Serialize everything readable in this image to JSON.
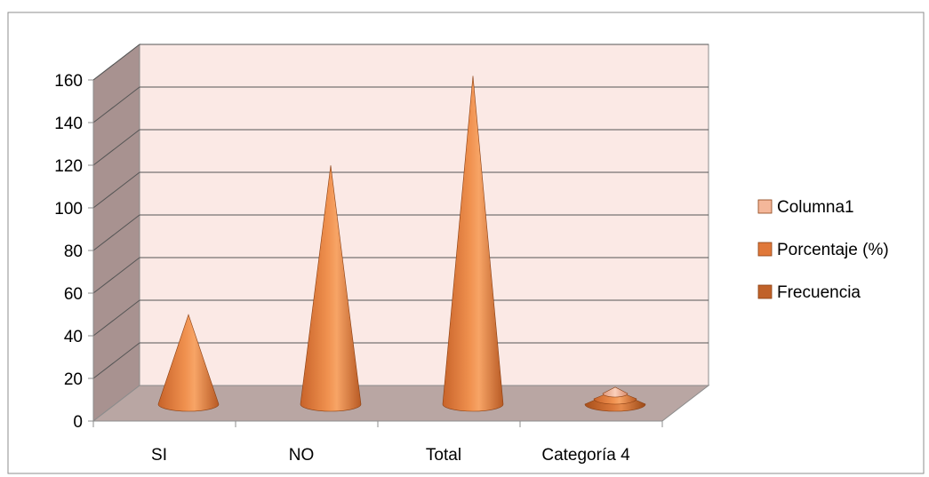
{
  "chart_data": {
    "type": "bar",
    "style": "3d-cone",
    "categories": [
      "SI",
      "NO",
      "Total",
      "Categoría 4"
    ],
    "series": [
      {
        "name": "Frecuencia",
        "values": [
          null,
          null,
          null,
          6
        ],
        "color": "#c0622a"
      },
      {
        "name": "Porcentaje (%)",
        "values": [
          42,
          112,
          154,
          4
        ],
        "color": "#e0783a"
      },
      {
        "name": "Columna1",
        "values": [
          null,
          null,
          null,
          3
        ],
        "color": "#f4b79a"
      }
    ],
    "y_ticks": [
      "0",
      "20",
      "40",
      "60",
      "80",
      "100",
      "120",
      "140",
      "160"
    ],
    "ylim": [
      0,
      160
    ],
    "grid": true,
    "legend": "right",
    "colors": {
      "wall": "#fbe9e5",
      "floor": "#b9a6a3",
      "side_wall": "#a89290",
      "gridline": "#555555"
    }
  }
}
